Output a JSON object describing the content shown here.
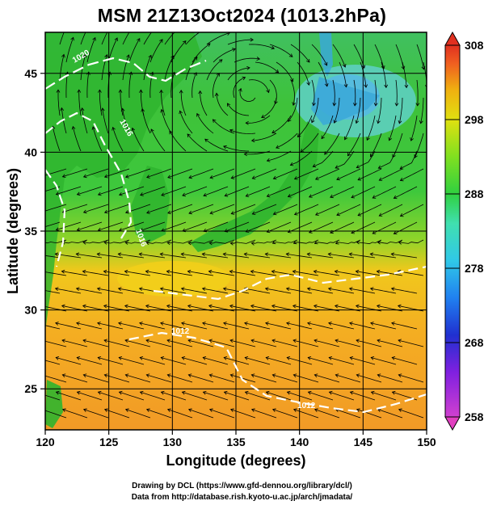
{
  "title": "MSM 21Z13Oct2024 (1013.2hPa)",
  "axes": {
    "x_label": "Longitude (degrees)",
    "y_label": "Latitude  (degrees)",
    "x_ticks": [
      "120",
      "125",
      "130",
      "135",
      "140",
      "145",
      "150"
    ],
    "y_ticks": [
      "25",
      "30",
      "35",
      "40",
      "45"
    ],
    "x_range": [
      120,
      150
    ],
    "y_range": [
      22.4,
      47.6
    ]
  },
  "colorbar": {
    "ticks": [
      "258",
      "268",
      "278",
      "288",
      "298",
      "308"
    ],
    "range": [
      258,
      308
    ],
    "colors": [
      "#e040c0",
      "#a020e0",
      "#2040e0",
      "#3090f0",
      "#30d0e0",
      "#40e0a0",
      "#30d030",
      "#80e020",
      "#d0e010",
      "#f0c010",
      "#f08020",
      "#e04030"
    ]
  },
  "contour_labels": [
    "1020",
    "1016",
    "1016",
    "1012",
    "1012"
  ],
  "credits": [
    "Drawing by DCL (https://www.gfd-dennou.org/library/dcl/)",
    "Data from http://database.rish.kyoto-u.ac.jp/arch/jmadata/"
  ],
  "colors": {
    "land_fill": "#2db82d",
    "north_cold": "#60c8e0",
    "south_warm": "#f0a020",
    "mid_warm": "#f2c41a",
    "streamline": "#000000",
    "contour": "#ffffff"
  }
}
